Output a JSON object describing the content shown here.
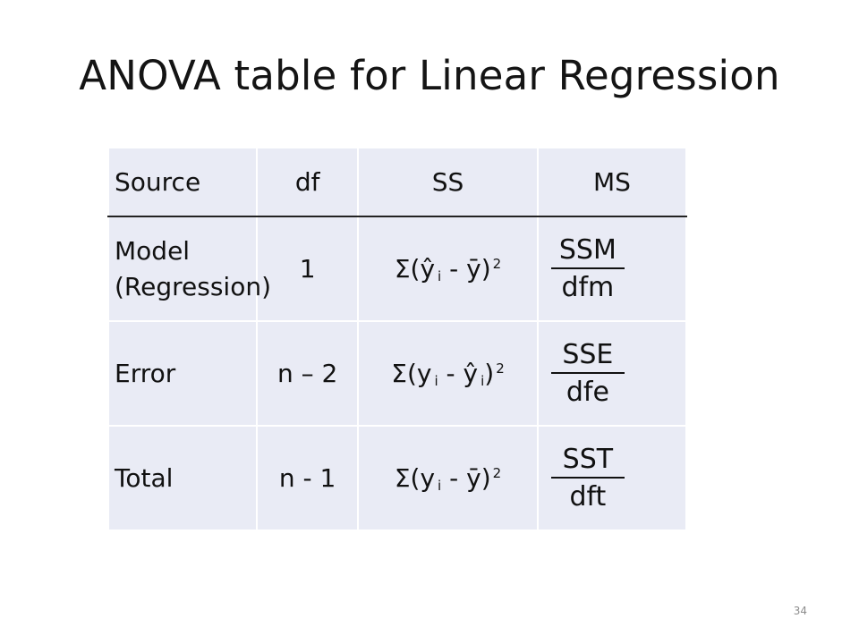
{
  "title": "ANOVA table for Linear Regression",
  "table": {
    "headers": [
      "Source",
      "df",
      "SS",
      "MS"
    ],
    "rows": [
      {
        "source_line1": "Model",
        "source_line2": "(Regression)",
        "df": "1",
        "ss": {
          "pre": "Σ(ŷ",
          "sub": "i",
          "mid": " - ȳ)",
          "sub2": "",
          "post": "",
          "sup": "2"
        },
        "ms": {
          "num": "SSM",
          "den": "dfm"
        }
      },
      {
        "source_line1": "Error",
        "source_line2": "",
        "df": "n – 2",
        "ss": {
          "pre": "Σ(y",
          "sub": "i",
          "mid": " - ŷ",
          "sub2": "i",
          "post": ")",
          "sup": "2"
        },
        "ms": {
          "num": "SSE",
          "den": "dfe"
        }
      },
      {
        "source_line1": "Total",
        "source_line2": "",
        "df": "n - 1",
        "ss": {
          "pre": "Σ(y",
          "sub": "i",
          "mid": " - ȳ)",
          "sub2": "",
          "post": "",
          "sup": "2"
        },
        "ms": {
          "num": "SST",
          "den": "dft"
        }
      }
    ]
  },
  "page_number": "34"
}
